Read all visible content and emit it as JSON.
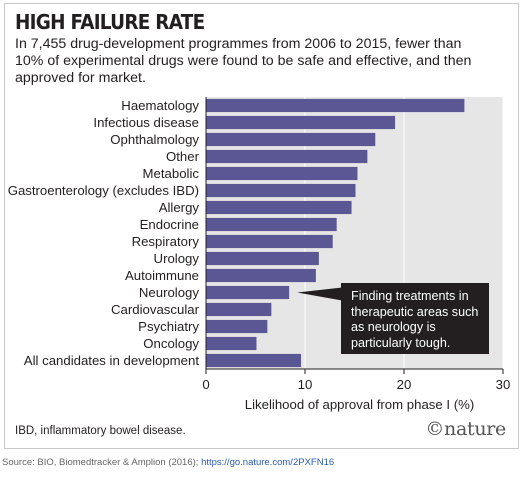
{
  "title": "HIGH FAILURE RATE",
  "subtitle": "In 7,455 drug-development programmes from 2006 to 2015, fewer than 10% of experimental drugs were found to be safe and effective, and then approved for market.",
  "footnote": "IBD, inflammatory bowel disease.",
  "logo": "©nature",
  "source": {
    "text": "Source: BIO, Biomedtracker & Amplion (2016); ",
    "link": "https://go.nature.com/2PXFN16"
  },
  "callout": "Finding treatments in therapeutic areas such as neurology is particularly tough.",
  "chart_data": {
    "type": "bar",
    "orientation": "horizontal",
    "title": "HIGH FAILURE RATE",
    "xlabel": "Likelihood of approval from phase I (%)",
    "ylabel": "",
    "xlim": [
      0,
      30
    ],
    "xticks": [
      0,
      10,
      20,
      30
    ],
    "grid": true,
    "bar_color": "#5b5794",
    "categories": [
      "Haematology",
      "Infectious disease",
      "Ophthalmology",
      "Other",
      "Metabolic",
      "Gastroenterology (excludes IBD)",
      "Allergy",
      "Endocrine",
      "Respiratory",
      "Urology",
      "Autoimmune",
      "Neurology",
      "Cardiovascular",
      "Psychiatry",
      "Oncology",
      "All candidates in development"
    ],
    "values": [
      26.1,
      19.1,
      17.1,
      16.3,
      15.3,
      15.1,
      14.7,
      13.2,
      12.8,
      11.4,
      11.1,
      8.4,
      6.6,
      6.2,
      5.1,
      9.6
    ]
  }
}
